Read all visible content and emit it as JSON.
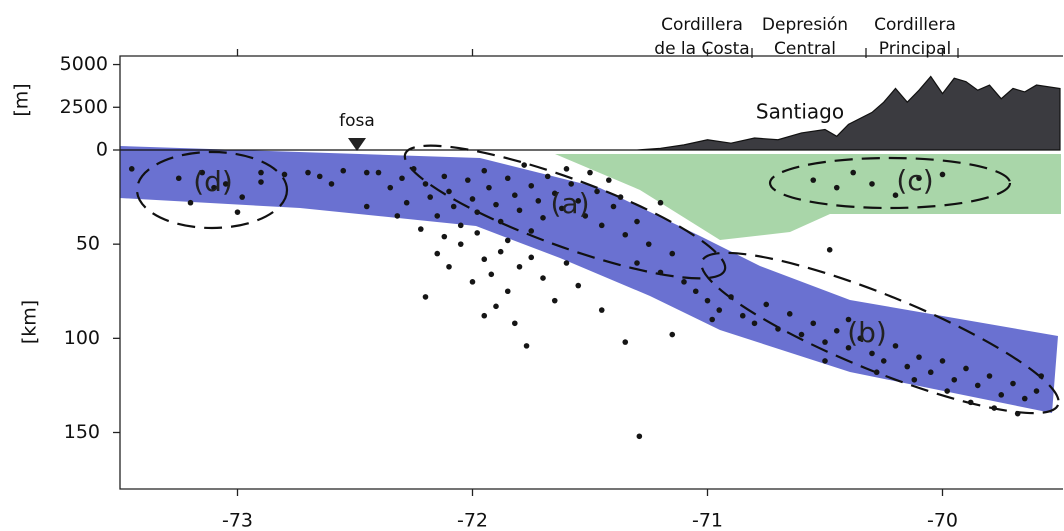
{
  "chart_data": [
    {
      "type": "area",
      "y_label": "[m]",
      "color": "#3b3b40",
      "regions": [
        [
          "Cordillera",
          "de la Costa"
        ],
        [
          "Depresión",
          "Central"
        ],
        [
          "Cordillera",
          "Principal"
        ]
      ],
      "annotations": [
        "Santiago",
        "fosa"
      ],
      "x": [
        -73.5,
        -71.3,
        -71.2,
        -71.1,
        -71.0,
        -70.9,
        -70.8,
        -70.7,
        -70.6,
        -70.5,
        -70.45,
        -70.4,
        -70.3,
        -70.25,
        -70.2,
        -70.15,
        -70.1,
        -70.05,
        -70.0,
        -69.95,
        -69.9,
        -69.85,
        -69.8,
        -69.75,
        -69.7,
        -69.65,
        -69.6,
        -69.5
      ],
      "values": [
        0,
        0,
        100,
        300,
        600,
        400,
        700,
        600,
        1000,
        1200,
        800,
        1500,
        2200,
        2800,
        3600,
        2800,
        3500,
        4300,
        3300,
        4200,
        4000,
        3500,
        3800,
        3000,
        3600,
        3400,
        3800,
        3600
      ],
      "xlim": [
        -73.5,
        -69.5
      ],
      "ylim": [
        0,
        5500
      ],
      "yticks": [
        0,
        2500,
        5000
      ]
    },
    {
      "type": "scatter",
      "y_label": "[km]",
      "color": "#151515",
      "y_inverted": true,
      "annotations": [
        "(a)",
        "(b)",
        "(c)",
        "(d)"
      ],
      "x": [
        -73.25,
        -73.15,
        -73.1,
        -73.05,
        -72.98,
        -73.0,
        -73.2,
        -72.9,
        -73.45,
        -72.9,
        -72.8,
        -72.7,
        -72.65,
        -72.55,
        -72.45,
        -72.6,
        -72.4,
        -72.35,
        -72.3,
        -72.28,
        -72.25,
        -72.2,
        -72.18,
        -72.15,
        -72.12,
        -72.1,
        -72.08,
        -72.05,
        -72.02,
        -72.0,
        -71.98,
        -71.95,
        -71.93,
        -71.9,
        -71.88,
        -71.85,
        -71.82,
        -71.8,
        -71.78,
        -71.75,
        -71.72,
        -71.7,
        -71.68,
        -71.65,
        -71.62,
        -71.6,
        -71.58,
        -71.55,
        -71.52,
        -71.5,
        -71.47,
        -71.45,
        -71.42,
        -71.4,
        -71.37,
        -71.35,
        -72.32,
        -72.22,
        -72.12,
        -71.98,
        -71.85,
        -71.75,
        -72.45,
        -71.3,
        -71.25,
        -71.2,
        -72.15,
        -72.1,
        -72.05,
        -72.0,
        -71.95,
        -71.92,
        -71.88,
        -71.85,
        -71.8,
        -71.75,
        -71.7,
        -71.65,
        -71.6,
        -71.55,
        -71.95,
        -71.9,
        -71.82,
        -72.2,
        -71.77,
        -71.45,
        -71.3,
        -71.2,
        -71.15,
        -71.1,
        -71.05,
        -71.0,
        -70.98,
        -70.95,
        -70.9,
        -70.85,
        -70.8,
        -70.75,
        -70.7,
        -70.65,
        -71.35,
        -71.15,
        -70.6,
        -70.55,
        -70.5,
        -70.45,
        -70.4,
        -70.35,
        -70.3,
        -70.25,
        -70.2,
        -70.15,
        -70.1,
        -70.05,
        -70.0,
        -69.95,
        -69.9,
        -69.85,
        -69.8,
        -69.75,
        -69.7,
        -69.65,
        -69.6,
        -70.28,
        -70.12,
        -69.98,
        -69.88,
        -69.78,
        -70.5,
        -70.4,
        -69.68,
        -69.58,
        -70.55,
        -70.45,
        -70.38,
        -70.3,
        -70.2,
        -70.1,
        -70.0,
        -70.48,
        -71.29
      ],
      "values": [
        15,
        12,
        20,
        18,
        25,
        33,
        28,
        17,
        10,
        12,
        13,
        12,
        14,
        11,
        12,
        18,
        12,
        20,
        15,
        28,
        10,
        18,
        25,
        35,
        14,
        22,
        30,
        40,
        16,
        26,
        33,
        11,
        20,
        29,
        38,
        15,
        24,
        32,
        8,
        19,
        27,
        36,
        14,
        23,
        31,
        10,
        18,
        27,
        35,
        12,
        22,
        40,
        16,
        30,
        25,
        45,
        35,
        42,
        46,
        44,
        48,
        43,
        30,
        38,
        50,
        28,
        55,
        62,
        50,
        70,
        58,
        66,
        54,
        75,
        62,
        57,
        68,
        80,
        60,
        72,
        88,
        83,
        92,
        78,
        104,
        85,
        60,
        65,
        55,
        70,
        75,
        80,
        90,
        85,
        78,
        88,
        92,
        82,
        95,
        87,
        102,
        98,
        98,
        92,
        102,
        96,
        105,
        100,
        108,
        112,
        104,
        115,
        110,
        118,
        112,
        122,
        116,
        125,
        120,
        130,
        124,
        132,
        128,
        118,
        122,
        128,
        134,
        137,
        112,
        90,
        140,
        120,
        16,
        20,
        12,
        18,
        24,
        15,
        13,
        53,
        152
      ],
      "xlim": [
        -73.5,
        -69.5
      ],
      "ylim": [
        0,
        180
      ],
      "xticks": [
        -73,
        -72,
        -71,
        -70
      ],
      "yticks": [
        50,
        100,
        150
      ]
    }
  ]
}
